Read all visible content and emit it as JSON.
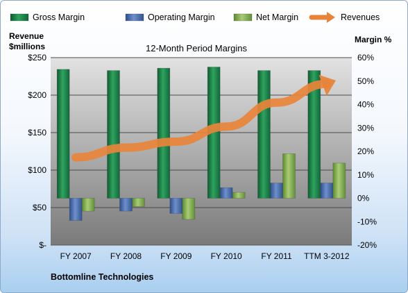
{
  "chart_data": {
    "type": "bar",
    "title": "12-Month Period Margins",
    "categories": [
      "FY 2007",
      "FY 2008",
      "FY 2009",
      "FY 2010",
      "FY 2011",
      "TTM 3-2012"
    ],
    "series": [
      {
        "name": "Gross Margin",
        "axis": "right",
        "values": [
          55,
          54.5,
          55.5,
          56,
          54.5,
          54.5
        ],
        "color": "#1f8a4c"
      },
      {
        "name": "Operating Margin",
        "axis": "right",
        "values": [
          -9.5,
          -5.5,
          -6.5,
          4.5,
          6.5,
          6.5
        ],
        "color": "#4f73b3"
      },
      {
        "name": "Net Margin",
        "axis": "right",
        "values": [
          -5.5,
          -3.5,
          -9,
          2.5,
          19,
          15
        ],
        "color": "#8db55a"
      },
      {
        "name": "Revenues",
        "axis": "left",
        "type": "line",
        "values": [
          117,
          130,
          138,
          158,
          190,
          215
        ],
        "color": "#e8843a"
      }
    ],
    "yaxis_left": {
      "label_line1": "Revenue",
      "label_line2": "$millions",
      "range": [
        0,
        250
      ],
      "ticks": [
        "$-",
        "$50",
        "$100",
        "$150",
        "$200",
        "$250"
      ]
    },
    "yaxis_right": {
      "label": "Margin %",
      "range": [
        -20,
        60
      ],
      "ticks": [
        "-20%",
        "-10%",
        "0%",
        "10%",
        "20%",
        "30%",
        "40%",
        "50%",
        "60%"
      ]
    },
    "grid": true,
    "legend_position": "top"
  },
  "footer": {
    "company": "Bottomline Technologies"
  }
}
